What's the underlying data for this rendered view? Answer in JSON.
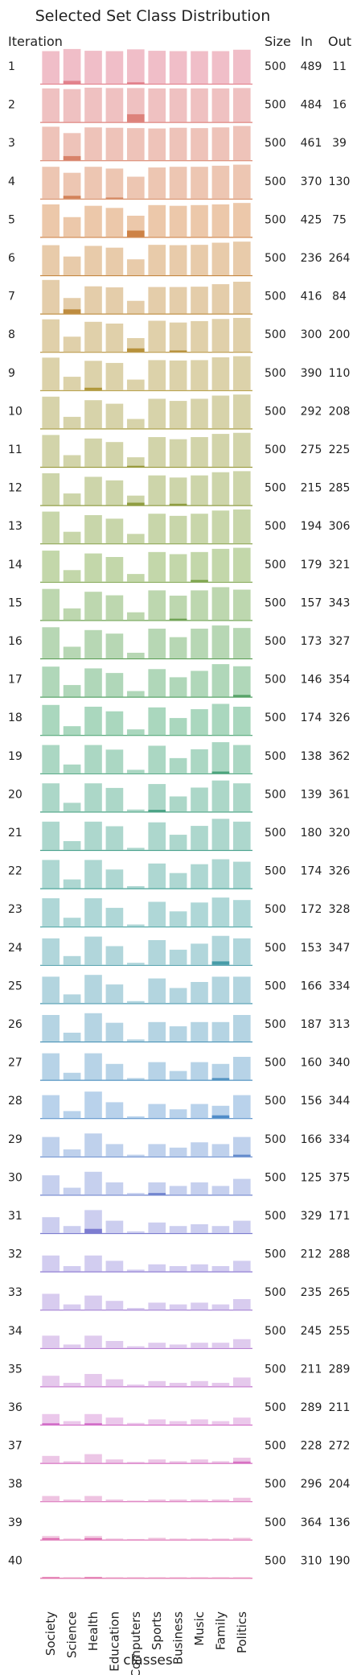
{
  "chart_data": {
    "type": "bar",
    "title": "Selected Set Class Distribution",
    "xlabel": "classes",
    "row_header": "Iteration",
    "column_headers": [
      "Size",
      "In",
      "Out"
    ],
    "categories": [
      "Society",
      "Science",
      "Health",
      "Education",
      "Computers",
      "Sports",
      "Business",
      "Music",
      "Family",
      "Politics"
    ],
    "rows": [
      {
        "iteration": "1",
        "size": "500",
        "in": "489",
        "out": "11",
        "values": [
          0.92,
          0.98,
          0.93,
          0.92,
          0.97,
          0.93,
          0.92,
          0.92,
          0.92,
          0.96
        ],
        "highlight": [
          0,
          0.08,
          0,
          0,
          0.04,
          0,
          0,
          0,
          0,
          0
        ]
      },
      {
        "iteration": "2",
        "size": "500",
        "in": "484",
        "out": "16",
        "values": [
          0.95,
          0.93,
          0.97,
          0.96,
          0.96,
          0.95,
          0.95,
          0.95,
          0.95,
          0.96
        ],
        "highlight": [
          0,
          0,
          0,
          0,
          0.22,
          0,
          0,
          0,
          0,
          0
        ]
      },
      {
        "iteration": "3",
        "size": "500",
        "in": "461",
        "out": "39",
        "values": [
          0.95,
          0.77,
          0.93,
          0.92,
          0.91,
          0.9,
          0.92,
          0.91,
          0.93,
          0.97
        ],
        "highlight": [
          0,
          0.12,
          0,
          0,
          0,
          0,
          0,
          0,
          0,
          0
        ]
      },
      {
        "iteration": "4",
        "size": "500",
        "in": "370",
        "out": "130",
        "values": [
          0.9,
          0.73,
          0.9,
          0.85,
          0.62,
          0.88,
          0.9,
          0.9,
          0.93,
          0.96
        ],
        "highlight": [
          0,
          0.08,
          0,
          0.03,
          0,
          0,
          0,
          0,
          0,
          0
        ]
      },
      {
        "iteration": "5",
        "size": "500",
        "in": "425",
        "out": "75",
        "values": [
          0.92,
          0.56,
          0.88,
          0.82,
          0.6,
          0.9,
          0.88,
          0.9,
          0.92,
          0.96
        ],
        "highlight": [
          0,
          0,
          0,
          0,
          0.18,
          0,
          0,
          0,
          0,
          0
        ]
      },
      {
        "iteration": "6",
        "size": "500",
        "in": "236",
        "out": "264",
        "values": [
          0.85,
          0.53,
          0.83,
          0.78,
          0.45,
          0.86,
          0.85,
          0.86,
          0.92,
          0.95
        ],
        "highlight": [
          0,
          0,
          0,
          0,
          0,
          0,
          0,
          0,
          0,
          0
        ]
      },
      {
        "iteration": "7",
        "size": "500",
        "in": "416",
        "out": "84",
        "values": [
          0.95,
          0.44,
          0.77,
          0.74,
          0.36,
          0.75,
          0.75,
          0.76,
          0.83,
          0.9
        ],
        "highlight": [
          0,
          0.12,
          0,
          0,
          0,
          0,
          0,
          0,
          0,
          0
        ]
      },
      {
        "iteration": "8",
        "size": "500",
        "in": "300",
        "out": "200",
        "values": [
          0.92,
          0.43,
          0.85,
          0.8,
          0.39,
          0.88,
          0.83,
          0.87,
          0.93,
          0.96
        ],
        "highlight": [
          0,
          0,
          0,
          0,
          0.1,
          0,
          0.04,
          0,
          0,
          0
        ]
      },
      {
        "iteration": "9",
        "size": "500",
        "in": "390",
        "out": "110",
        "values": [
          0.92,
          0.38,
          0.83,
          0.77,
          0.3,
          0.85,
          0.84,
          0.85,
          0.93,
          0.96
        ],
        "highlight": [
          0,
          0,
          0.07,
          0,
          0,
          0,
          0,
          0,
          0,
          0
        ]
      },
      {
        "iteration": "10",
        "size": "500",
        "in": "292",
        "out": "208",
        "values": [
          0.9,
          0.33,
          0.8,
          0.7,
          0.27,
          0.84,
          0.78,
          0.84,
          0.93,
          0.96
        ],
        "highlight": [
          0,
          0,
          0,
          0,
          0,
          0,
          0,
          0,
          0,
          0
        ]
      },
      {
        "iteration": "11",
        "size": "500",
        "in": "275",
        "out": "225",
        "values": [
          0.9,
          0.33,
          0.8,
          0.7,
          0.27,
          0.84,
          0.78,
          0.84,
          0.93,
          0.96
        ],
        "highlight": [
          0,
          0,
          0,
          0,
          0.03,
          0,
          0,
          0,
          0,
          0
        ]
      },
      {
        "iteration": "12",
        "size": "500",
        "in": "215",
        "out": "285",
        "values": [
          0.9,
          0.33,
          0.8,
          0.7,
          0.27,
          0.84,
          0.78,
          0.84,
          0.93,
          0.96
        ],
        "highlight": [
          0,
          0,
          0,
          0,
          0.07,
          0,
          0.04,
          0,
          0,
          0
        ]
      },
      {
        "iteration": "13",
        "size": "500",
        "in": "194",
        "out": "306",
        "values": [
          0.9,
          0.33,
          0.8,
          0.7,
          0.27,
          0.84,
          0.78,
          0.84,
          0.93,
          0.96
        ],
        "highlight": [
          0,
          0,
          0,
          0,
          0,
          0,
          0,
          0,
          0,
          0
        ]
      },
      {
        "iteration": "14",
        "size": "500",
        "in": "179",
        "out": "321",
        "values": [
          0.88,
          0.33,
          0.8,
          0.7,
          0.22,
          0.84,
          0.78,
          0.84,
          0.93,
          0.96
        ],
        "highlight": [
          0,
          0,
          0,
          0,
          0,
          0,
          0,
          0.05,
          0,
          0
        ]
      },
      {
        "iteration": "15",
        "size": "500",
        "in": "157",
        "out": "343",
        "values": [
          0.88,
          0.33,
          0.8,
          0.7,
          0.22,
          0.84,
          0.69,
          0.84,
          0.93,
          0.86
        ],
        "highlight": [
          0,
          0,
          0,
          0,
          0,
          0,
          0.04,
          0,
          0,
          0
        ]
      },
      {
        "iteration": "16",
        "size": "500",
        "in": "173",
        "out": "327",
        "values": [
          0.88,
          0.33,
          0.8,
          0.7,
          0.16,
          0.84,
          0.6,
          0.84,
          0.93,
          0.86
        ],
        "highlight": [
          0,
          0,
          0,
          0,
          0,
          0,
          0,
          0,
          0,
          0
        ]
      },
      {
        "iteration": "17",
        "size": "500",
        "in": "146",
        "out": "354",
        "values": [
          0.85,
          0.33,
          0.8,
          0.67,
          0.16,
          0.78,
          0.55,
          0.73,
          0.92,
          0.86
        ],
        "highlight": [
          0,
          0,
          0,
          0,
          0,
          0,
          0,
          0,
          0,
          0.05
        ]
      },
      {
        "iteration": "18",
        "size": "500",
        "in": "174",
        "out": "326",
        "values": [
          0.85,
          0.25,
          0.8,
          0.67,
          0.16,
          0.78,
          0.48,
          0.73,
          0.88,
          0.8
        ],
        "highlight": [
          0,
          0,
          0,
          0,
          0,
          0,
          0,
          0,
          0,
          0
        ]
      },
      {
        "iteration": "19",
        "size": "500",
        "in": "138",
        "out": "362",
        "values": [
          0.8,
          0.25,
          0.8,
          0.67,
          0.1,
          0.78,
          0.43,
          0.68,
          0.88,
          0.8
        ],
        "highlight": [
          0,
          0,
          0,
          0,
          0,
          0,
          0,
          0,
          0.05,
          0
        ]
      },
      {
        "iteration": "20",
        "size": "500",
        "in": "139",
        "out": "361",
        "values": [
          0.8,
          0.25,
          0.8,
          0.67,
          0.06,
          0.78,
          0.43,
          0.68,
          0.88,
          0.8
        ],
        "highlight": [
          0,
          0,
          0,
          0,
          0,
          0.05,
          0,
          0,
          0,
          0
        ]
      },
      {
        "iteration": "21",
        "size": "500",
        "in": "180",
        "out": "320",
        "values": [
          0.8,
          0.25,
          0.8,
          0.67,
          0.06,
          0.78,
          0.43,
          0.68,
          0.88,
          0.8
        ],
        "highlight": [
          0,
          0,
          0,
          0,
          0,
          0,
          0,
          0,
          0,
          0
        ]
      },
      {
        "iteration": "22",
        "size": "500",
        "in": "174",
        "out": "326",
        "values": [
          0.8,
          0.25,
          0.8,
          0.53,
          0.06,
          0.7,
          0.43,
          0.68,
          0.82,
          0.75
        ],
        "highlight": [
          0,
          0,
          0,
          0,
          0,
          0,
          0,
          0,
          0,
          0
        ]
      },
      {
        "iteration": "23",
        "size": "500",
        "in": "172",
        "out": "328",
        "values": [
          0.8,
          0.25,
          0.8,
          0.53,
          0.06,
          0.7,
          0.43,
          0.68,
          0.82,
          0.75
        ],
        "highlight": [
          0,
          0,
          0,
          0,
          0,
          0,
          0,
          0,
          0,
          0
        ]
      },
      {
        "iteration": "24",
        "size": "500",
        "in": "153",
        "out": "347",
        "values": [
          0.75,
          0.25,
          0.8,
          0.53,
          0.06,
          0.7,
          0.43,
          0.6,
          0.82,
          0.75
        ],
        "highlight": [
          0,
          0,
          0,
          0,
          0,
          0,
          0,
          0,
          0.1,
          0
        ]
      },
      {
        "iteration": "25",
        "size": "500",
        "in": "166",
        "out": "334",
        "values": [
          0.75,
          0.25,
          0.8,
          0.53,
          0.06,
          0.7,
          0.43,
          0.6,
          0.75,
          0.75
        ],
        "highlight": [
          0,
          0,
          0,
          0,
          0,
          0,
          0,
          0,
          0,
          0
        ]
      },
      {
        "iteration": "26",
        "size": "500",
        "in": "187",
        "out": "313",
        "values": [
          0.75,
          0.25,
          0.8,
          0.53,
          0.06,
          0.55,
          0.43,
          0.55,
          0.55,
          0.75
        ],
        "highlight": [
          0,
          0,
          0,
          0,
          0,
          0,
          0,
          0,
          0,
          0
        ]
      },
      {
        "iteration": "27",
        "size": "500",
        "in": "160",
        "out": "340",
        "values": [
          0.75,
          0.2,
          0.75,
          0.45,
          0.05,
          0.5,
          0.25,
          0.5,
          0.45,
          0.65
        ],
        "highlight": [
          0,
          0,
          0,
          0,
          0,
          0,
          0,
          0,
          0.05,
          0
        ]
      },
      {
        "iteration": "28",
        "size": "500",
        "in": "156",
        "out": "344",
        "values": [
          0.65,
          0.2,
          0.75,
          0.45,
          0.05,
          0.4,
          0.25,
          0.4,
          0.35,
          0.65
        ],
        "highlight": [
          0,
          0,
          0,
          0,
          0,
          0,
          0,
          0,
          0.08,
          0
        ]
      },
      {
        "iteration": "29",
        "size": "500",
        "in": "166",
        "out": "334",
        "values": [
          0.55,
          0.2,
          0.65,
          0.35,
          0.05,
          0.35,
          0.25,
          0.4,
          0.35,
          0.55
        ],
        "highlight": [
          0,
          0,
          0,
          0,
          0,
          0,
          0,
          0,
          0,
          0.05
        ]
      },
      {
        "iteration": "30",
        "size": "500",
        "in": "125",
        "out": "375",
        "values": [
          0.55,
          0.2,
          0.65,
          0.35,
          0.05,
          0.35,
          0.25,
          0.35,
          0.25,
          0.45
        ],
        "highlight": [
          0,
          0,
          0,
          0,
          0,
          0.05,
          0,
          0,
          0,
          0
        ]
      },
      {
        "iteration": "31",
        "size": "500",
        "in": "329",
        "out": "171",
        "values": [
          0.45,
          0.2,
          0.65,
          0.35,
          0.05,
          0.3,
          0.2,
          0.25,
          0.2,
          0.35
        ],
        "highlight": [
          0,
          0,
          0.12,
          0,
          0,
          0,
          0,
          0,
          0,
          0
        ]
      },
      {
        "iteration": "32",
        "size": "500",
        "in": "212",
        "out": "288",
        "values": [
          0.45,
          0.15,
          0.45,
          0.3,
          0.05,
          0.2,
          0.15,
          0.2,
          0.15,
          0.3
        ],
        "highlight": [
          0,
          0,
          0,
          0,
          0,
          0,
          0,
          0,
          0,
          0
        ]
      },
      {
        "iteration": "33",
        "size": "500",
        "in": "235",
        "out": "265",
        "values": [
          0.45,
          0.15,
          0.4,
          0.25,
          0.05,
          0.2,
          0.15,
          0.2,
          0.15,
          0.3
        ],
        "highlight": [
          0,
          0,
          0,
          0,
          0,
          0,
          0,
          0,
          0,
          0
        ]
      },
      {
        "iteration": "34",
        "size": "500",
        "in": "245",
        "out": "255",
        "values": [
          0.35,
          0.1,
          0.35,
          0.2,
          0.05,
          0.15,
          0.1,
          0.15,
          0.15,
          0.25
        ],
        "highlight": [
          0,
          0,
          0,
          0,
          0,
          0,
          0,
          0,
          0,
          0
        ]
      },
      {
        "iteration": "35",
        "size": "500",
        "in": "211",
        "out": "289",
        "values": [
          0.3,
          0.1,
          0.35,
          0.2,
          0.05,
          0.15,
          0.1,
          0.15,
          0.1,
          0.25
        ],
        "highlight": [
          0,
          0,
          0,
          0,
          0,
          0,
          0,
          0,
          0,
          0
        ]
      },
      {
        "iteration": "36",
        "size": "500",
        "in": "289",
        "out": "211",
        "values": [
          0.3,
          0.1,
          0.3,
          0.2,
          0.05,
          0.15,
          0.1,
          0.15,
          0.1,
          0.2
        ],
        "highlight": [
          0.04,
          0,
          0.04,
          0,
          0,
          0,
          0,
          0,
          0,
          0
        ]
      },
      {
        "iteration": "37",
        "size": "500",
        "in": "228",
        "out": "272",
        "values": [
          0.2,
          0.05,
          0.25,
          0.1,
          0.03,
          0.1,
          0.05,
          0.1,
          0.05,
          0.15
        ],
        "highlight": [
          0,
          0,
          0,
          0,
          0,
          0,
          0,
          0,
          0,
          0.04
        ]
      },
      {
        "iteration": "38",
        "size": "500",
        "in": "296",
        "out": "204",
        "values": [
          0.15,
          0.05,
          0.15,
          0.05,
          0.02,
          0.05,
          0.05,
          0.05,
          0.05,
          0.1
        ],
        "highlight": [
          0,
          0,
          0,
          0,
          0,
          0,
          0,
          0,
          0,
          0
        ]
      },
      {
        "iteration": "39",
        "size": "500",
        "in": "364",
        "out": "136",
        "values": [
          0.1,
          0.03,
          0.1,
          0.03,
          0.02,
          0.05,
          0.03,
          0.03,
          0.03,
          0.05
        ],
        "highlight": [
          0.04,
          0,
          0.04,
          0,
          0,
          0,
          0,
          0,
          0,
          0
        ]
      },
      {
        "iteration": "40",
        "size": "500",
        "in": "310",
        "out": "190",
        "values": [
          0.03,
          0.02,
          0.03,
          0.02,
          0.02,
          0.02,
          0.02,
          0.02,
          0.02,
          0.02
        ],
        "highlight": [
          0.02,
          0,
          0.02,
          0,
          0,
          0,
          0,
          0,
          0,
          0
        ]
      }
    ],
    "grid": false,
    "legend": "none"
  }
}
